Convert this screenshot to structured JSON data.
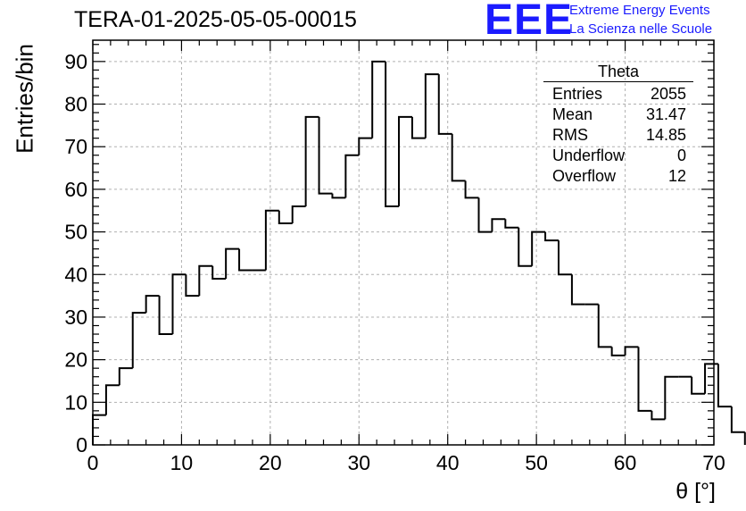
{
  "title": "TERA-01-2025-05-05-00015",
  "logo": {
    "mark": "EEE",
    "line1": "Extreme Energy Events",
    "line2": "La Scienza nelle Scuole"
  },
  "stats_box": {
    "title": "Theta",
    "rows": [
      {
        "label": "Entries",
        "value": "2055"
      },
      {
        "label": "Mean",
        "value": "31.47"
      },
      {
        "label": "RMS",
        "value": "14.85"
      },
      {
        "label": "Underflow",
        "value": "0"
      },
      {
        "label": "Overflow",
        "value": "12"
      }
    ]
  },
  "chart_data": {
    "type": "bar",
    "subtype": "histogram-step",
    "xlabel": "θ [°]",
    "ylabel": "Entries/bin",
    "xlim": [
      0,
      70
    ],
    "ylim": [
      0,
      95
    ],
    "grid": true,
    "legend": "top-right",
    "bin_width": 1.5,
    "bin_start": 0,
    "x_ticks": [
      "0",
      "10",
      "20",
      "30",
      "40",
      "50",
      "60",
      "70"
    ],
    "y_ticks": [
      "0",
      "10",
      "20",
      "30",
      "40",
      "50",
      "60",
      "70",
      "80",
      "90"
    ],
    "values": [
      7,
      14,
      18,
      31,
      35,
      26,
      40,
      35,
      42,
      39,
      46,
      41,
      41,
      55,
      52,
      56,
      77,
      59,
      58,
      68,
      72,
      90,
      56,
      77,
      72,
      87,
      73,
      62,
      58,
      50,
      53,
      51,
      42,
      50,
      48,
      40,
      33,
      33,
      23,
      21,
      23,
      8,
      6,
      16,
      16,
      12,
      19,
      9,
      3
    ],
    "line_color": "#000000",
    "grid_color": "#b0b0b0"
  }
}
